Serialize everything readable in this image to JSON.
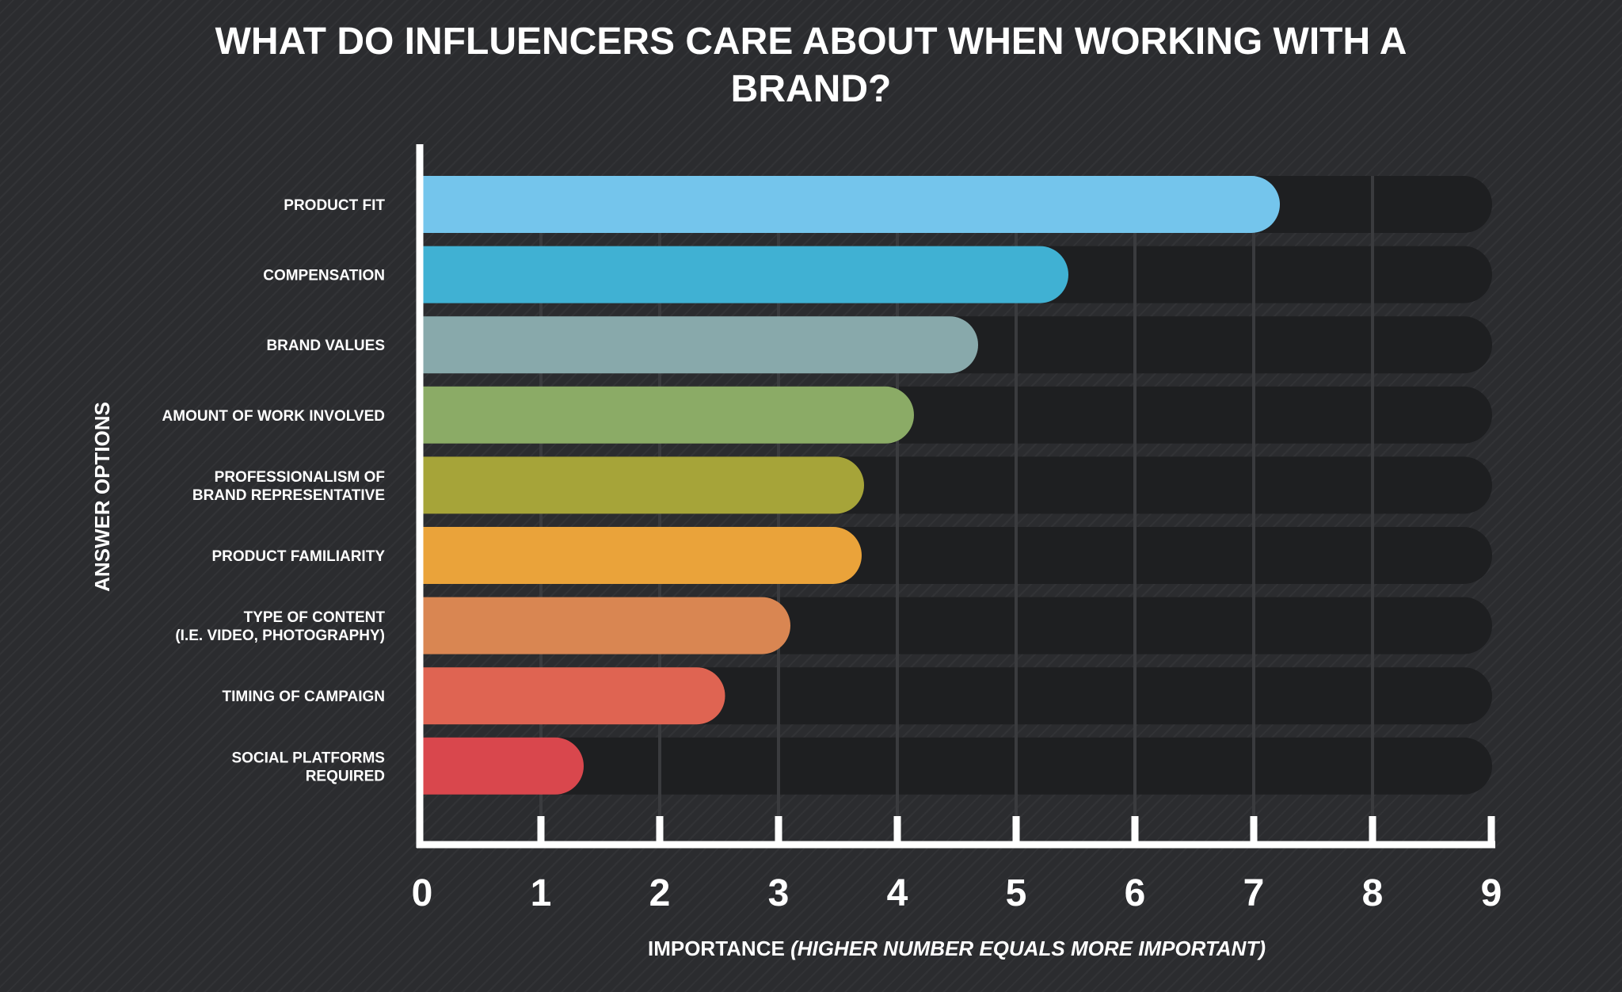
{
  "chart_data": {
    "type": "bar",
    "orientation": "horizontal",
    "title_lines": [
      "WHAT DO INFLUENCERS CARE ABOUT WHEN WORKING WITH A",
      "BRAND?"
    ],
    "xlabel_main": "IMPORTANCE",
    "xlabel_note": "(HIGHER NUMBER EQUALS MORE IMPORTANT)",
    "ylabel": "ANSWER OPTIONS",
    "xlim": [
      0,
      9
    ],
    "xticks": [
      0,
      1,
      2,
      3,
      4,
      5,
      6,
      7,
      8,
      9
    ],
    "grid": true,
    "categories": [
      [
        "PRODUCT FIT"
      ],
      [
        "COMPENSATION"
      ],
      [
        "BRAND VALUES"
      ],
      [
        "AMOUNT OF WORK INVOLVED"
      ],
      [
        "PROFESSIONALISM OF",
        "BRAND REPRESENTATIVE"
      ],
      [
        "PRODUCT FAMILIARITY"
      ],
      [
        "TYPE OF CONTENT",
        "(I.E. VIDEO, PHOTOGRAPHY)"
      ],
      [
        "TIMING OF CAMPAIGN"
      ],
      [
        "SOCIAL PLATFORMS",
        "REQUIRED"
      ]
    ],
    "values": [
      7.22,
      5.44,
      4.68,
      4.14,
      3.72,
      3.7,
      3.1,
      2.55,
      1.36
    ],
    "colors": [
      "#74c5ec",
      "#40b1d3",
      "#88a9ab",
      "#8bab66",
      "#a6a439",
      "#eaa33a",
      "#d98652",
      "#df6452",
      "#d9474d"
    ],
    "background_color": "#2b2c2f",
    "track_color": "#1e1f21",
    "axis_color": "#ffffff"
  }
}
